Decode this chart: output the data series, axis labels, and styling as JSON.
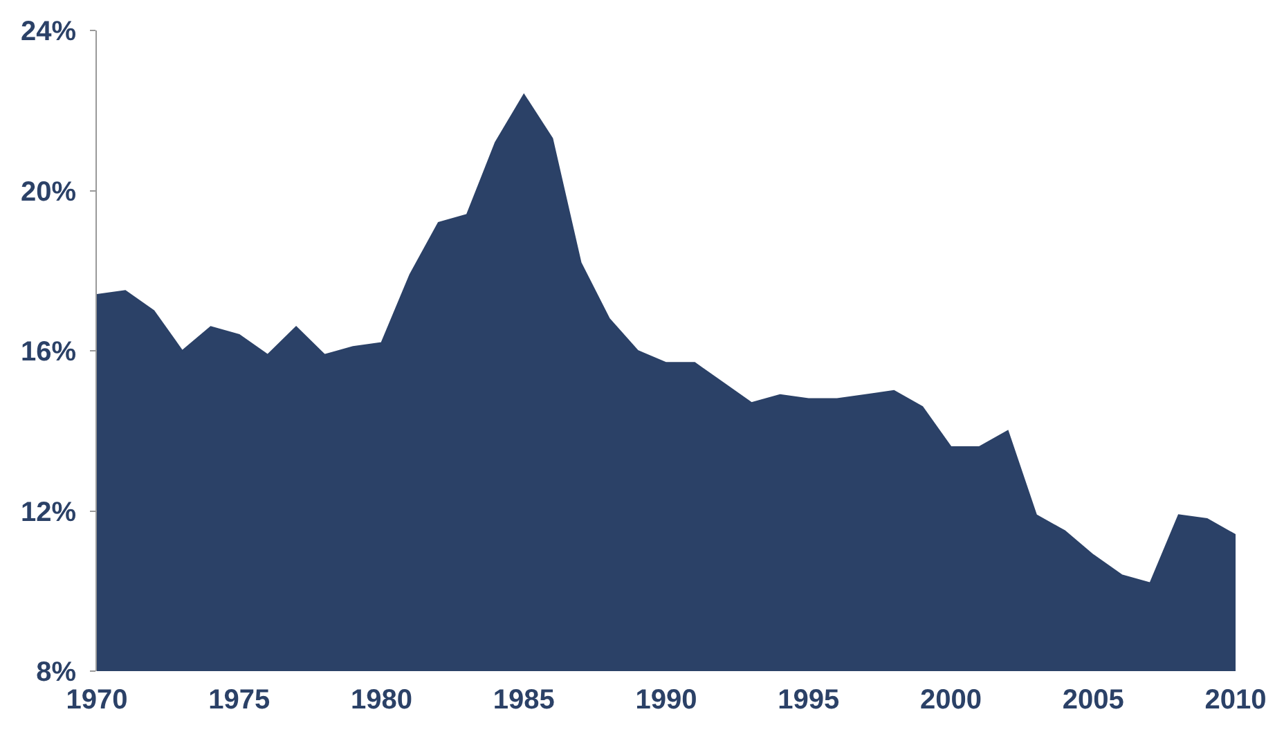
{
  "chart_data": {
    "type": "area",
    "x": [
      1970,
      1971,
      1972,
      1973,
      1974,
      1975,
      1976,
      1977,
      1978,
      1979,
      1980,
      1981,
      1982,
      1983,
      1984,
      1985,
      1986,
      1987,
      1988,
      1989,
      1990,
      1991,
      1992,
      1993,
      1994,
      1995,
      1996,
      1997,
      1998,
      1999,
      2000,
      2001,
      2002,
      2003,
      2004,
      2005,
      2006,
      2007,
      2008,
      2009,
      2010
    ],
    "series": [
      {
        "color": "#2b4167",
        "values": [
          17.4,
          17.5,
          17.0,
          16.0,
          16.6,
          16.4,
          15.9,
          16.6,
          15.9,
          16.1,
          16.2,
          17.9,
          19.2,
          19.4,
          21.2,
          22.4,
          21.3,
          18.2,
          16.8,
          16.0,
          15.7,
          15.7,
          15.2,
          14.7,
          14.9,
          14.8,
          14.8,
          14.9,
          15.0,
          14.6,
          13.6,
          13.6,
          14.0,
          11.9,
          11.5,
          10.9,
          10.4,
          10.2,
          11.9,
          11.8,
          11.4
        ]
      }
    ],
    "xlim": [
      1970,
      2010
    ],
    "xticks": [
      1970,
      1975,
      1980,
      1985,
      1990,
      1995,
      2000,
      2005,
      2010
    ],
    "ylim": [
      8,
      24
    ],
    "yticks": [
      {
        "value": 8,
        "label": "8%"
      },
      {
        "value": 12,
        "label": "12%"
      },
      {
        "value": 16,
        "label": "16%"
      },
      {
        "value": 20,
        "label": "20%"
      },
      {
        "value": 24,
        "label": "24%"
      }
    ],
    "legend": false
  }
}
